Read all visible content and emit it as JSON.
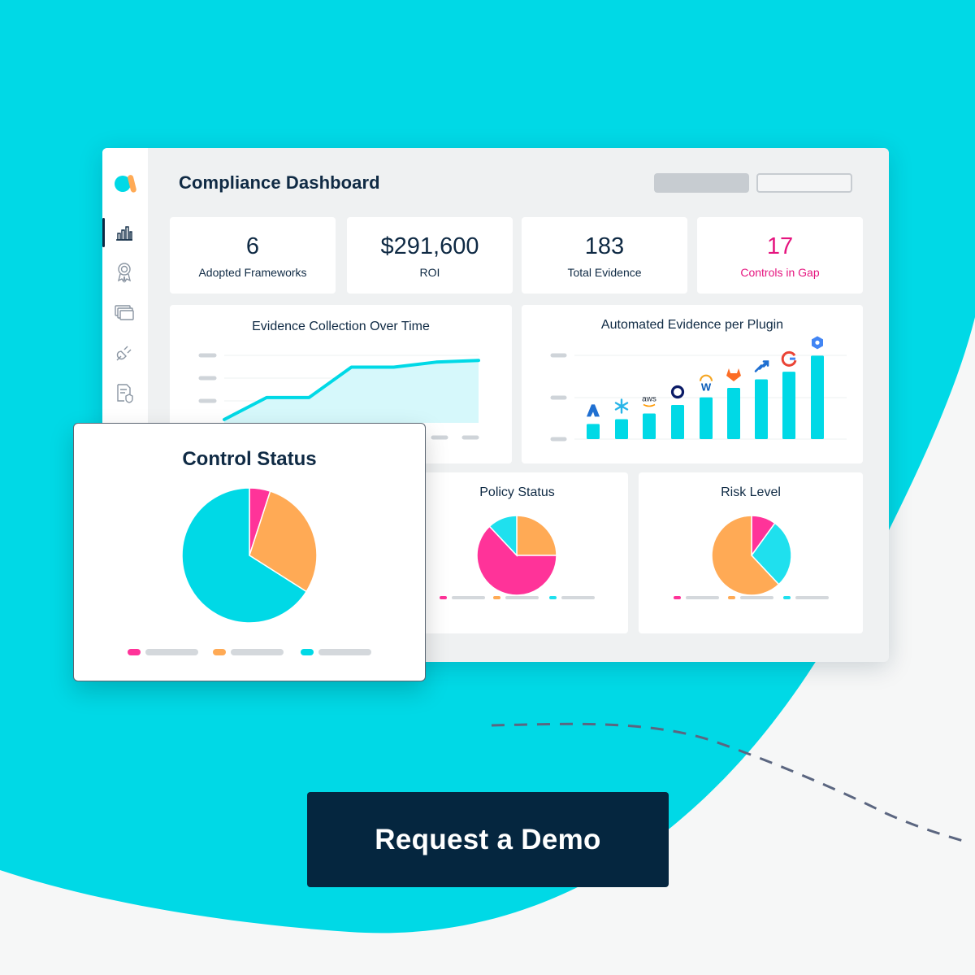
{
  "colors": {
    "brand_cyan": "#00d9e6",
    "navy": "#0f2a44",
    "pink": "#ff3399",
    "orange": "#ffaa55",
    "cyan_light": "#1fe0ee",
    "gap_magenta": "#e5157f",
    "button_bg": "#05263f"
  },
  "dashboard": {
    "title": "Compliance Dashboard",
    "sidebar_icons": [
      "bar-chart-icon",
      "award-icon",
      "cards-icon",
      "plug-icon",
      "policy-shield-icon"
    ]
  },
  "kpis": [
    {
      "value": "6",
      "label": "Adopted Frameworks"
    },
    {
      "value": "$291,600",
      "label": "ROI"
    },
    {
      "value": "183",
      "label": "Total Evidence"
    },
    {
      "value": "17",
      "label": "Controls in Gap"
    }
  ],
  "evidence_chart": {
    "title": "Evidence Collection Over Time",
    "chart_data": {
      "type": "area",
      "x": [
        1,
        2,
        3,
        4,
        5,
        6,
        7
      ],
      "values": [
        2,
        15,
        15,
        33,
        33,
        36,
        37
      ]
    }
  },
  "plugin_chart": {
    "title": "Automated Evidence per Plugin",
    "chart_data": {
      "type": "bar",
      "categories": [
        "azure-icon",
        "snowflake-icon",
        "aws-icon",
        "okta-icon",
        "workday-icon",
        "gitlab-icon",
        "jira-icon",
        "google-icon",
        "gcp-icon"
      ],
      "values": [
        16,
        21,
        27,
        36,
        44,
        54,
        63,
        71,
        88
      ],
      "icon_labels": [
        "aws",
        "W"
      ]
    }
  },
  "policy_status": {
    "title": "Policy Status",
    "chart_data": {
      "type": "pie",
      "values": [
        25,
        63,
        12
      ],
      "colors": [
        "#ffaa55",
        "#ff3399",
        "#1fe0ee"
      ]
    }
  },
  "risk_level": {
    "title": "Risk Level",
    "chart_data": {
      "type": "pie",
      "values": [
        10,
        28,
        62
      ],
      "colors": [
        "#ff3399",
        "#1fe0ee",
        "#ffaa55"
      ]
    }
  },
  "control_status": {
    "title": "Control Status",
    "chart_data": {
      "type": "pie",
      "values": [
        5,
        29,
        66
      ],
      "colors": [
        "#ff3399",
        "#ffaa55",
        "#00d9e6"
      ]
    }
  },
  "cta": {
    "label": "Request a Demo"
  }
}
